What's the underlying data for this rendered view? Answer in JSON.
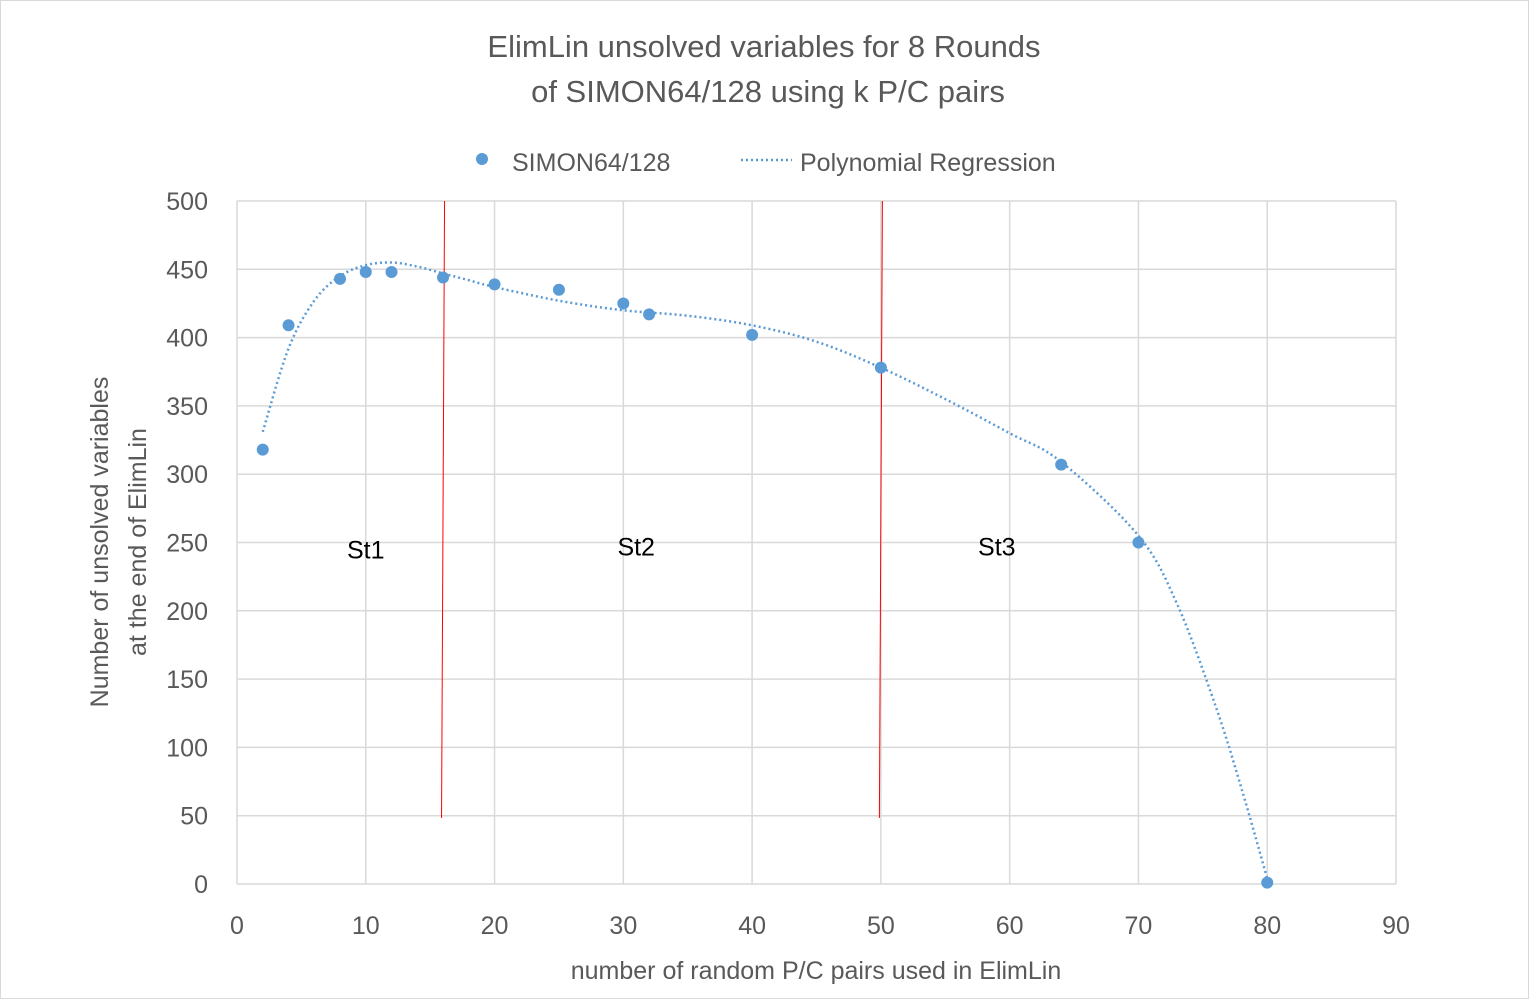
{
  "chart_data": {
    "type": "scatter",
    "title_lines": [
      "ElimLin unsolved variables for 8 Rounds",
      "of SIMON64/128 using k P/C pairs"
    ],
    "xlabel": "number of random P/C pairs used in ElimLin",
    "ylabel_lines": [
      "Number of unsolved variables",
      "at the end of ElimLin"
    ],
    "xlim": [
      0,
      90
    ],
    "ylim": [
      0,
      500
    ],
    "xticks": [
      0,
      10,
      20,
      30,
      40,
      50,
      60,
      70,
      80,
      90
    ],
    "yticks": [
      0,
      50,
      100,
      150,
      200,
      250,
      300,
      350,
      400,
      450,
      500
    ],
    "grid": true,
    "legend_position": "top",
    "series": [
      {
        "name": "SIMON64/128",
        "kind": "scatter",
        "color": "#5b9bd5",
        "x": [
          2,
          4,
          8,
          10,
          12,
          16,
          20,
          25,
          30,
          32,
          40,
          50,
          64,
          70,
          80
        ],
        "y": [
          318,
          409,
          443,
          448,
          448,
          444,
          439,
          435,
          425,
          417,
          402,
          378,
          307,
          250,
          1
        ]
      },
      {
        "name": "Polynomial Regression",
        "kind": "trendline",
        "style": "dotted",
        "color": "#5b9bd5",
        "x": [
          2,
          4,
          6,
          8,
          10,
          12,
          14,
          16,
          18,
          20,
          25,
          30,
          35,
          40,
          45,
          50,
          55,
          60,
          64,
          70,
          73,
          76,
          78,
          80
        ],
        "y": [
          331,
          392,
          427,
          445,
          453,
          455,
          452,
          447,
          442,
          437,
          427,
          420,
          416,
          409,
          397,
          378,
          355,
          330,
          309,
          255,
          205,
          130,
          70,
          4
        ]
      }
    ],
    "vlines": [
      {
        "x": 16,
        "color": "#ff0000"
      },
      {
        "x": 50,
        "color": "#ff0000"
      }
    ],
    "annotations": [
      {
        "text": "St1",
        "x": 10,
        "y": 245
      },
      {
        "text": "St2",
        "x": 31,
        "y": 247
      },
      {
        "text": "St3",
        "x": 59,
        "y": 247
      }
    ]
  }
}
